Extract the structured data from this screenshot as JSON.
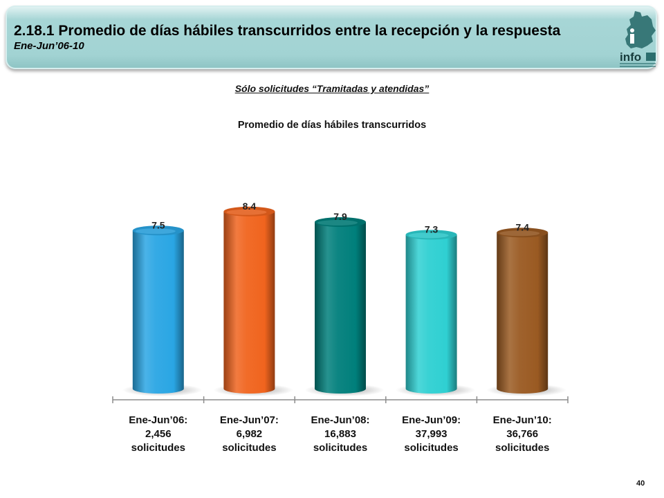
{
  "header": {
    "number": "2.18.1",
    "title": "Promedio de días hábiles transcurridos entre la recepción y la respuesta",
    "subtitle": "Ene-Jun’06-10"
  },
  "logo": {
    "icon": "info-df-logo-icon",
    "text": "info"
  },
  "note": "Sólo solicitudes “Tramitadas y atendidas”",
  "chart_data": {
    "type": "bar",
    "title": "Promedio de días hábiles transcurridos",
    "categories": [
      [
        "Ene-Jun’06:",
        "2,456",
        "solicitudes"
      ],
      [
        "Ene-Jun’07:",
        "6,982",
        "solicitudes"
      ],
      [
        "Ene-Jun’08:",
        "16,883",
        "solicitudes"
      ],
      [
        "Ene-Jun’09:",
        "37,993",
        "solicitudes"
      ],
      [
        "Ene-Jun’10:",
        "36,766",
        "solicitudes"
      ]
    ],
    "values": [
      7.5,
      8.4,
      7.9,
      7.3,
      7.4
    ],
    "data_labels": [
      "7.5",
      "8.4",
      "7.9",
      "7.3",
      "7.4"
    ],
    "colors": [
      "#2aa6e4",
      "#f0641e",
      "#007f7b",
      "#2fd0d2",
      "#9a5a22"
    ],
    "style": "3d-cylinder",
    "grid": false,
    "legend": "none"
  },
  "page_number": "40"
}
